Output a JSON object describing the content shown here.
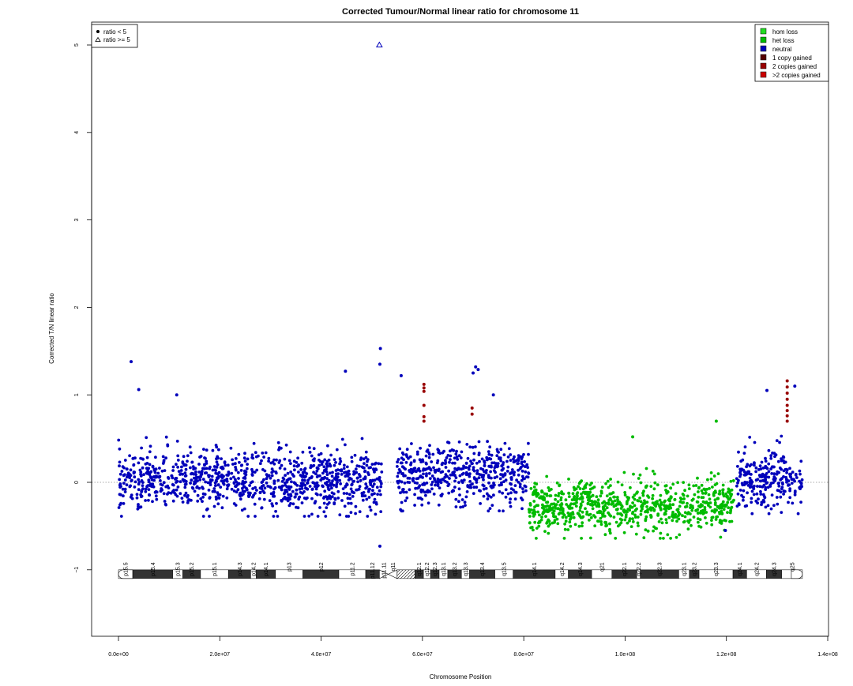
{
  "chart_data": {
    "type": "scatter",
    "title": "Corrected Tumour/Normal linear ratio for chromosome  11",
    "xlabel": "Chromosome Position",
    "ylabel": "Corrected T/N linear ratio",
    "xlim": [
      -5000000,
      140000000
    ],
    "ylim": [
      -1.8,
      5.2
    ],
    "x_ticks": [
      0,
      20000000,
      40000000,
      60000000,
      80000000,
      100000000,
      120000000,
      140000000
    ],
    "x_tick_labels": [
      "0.0e+00",
      "2.0e+07",
      "4.0e+07",
      "6.0e+07",
      "8.0e+07",
      "1.0e+08",
      "1.2e+08",
      "1.4e+08"
    ],
    "y_ticks": [
      -1,
      0,
      1,
      2,
      3,
      4,
      5
    ],
    "y_tick_labels": [
      "−1",
      "0",
      "1",
      "2",
      "3",
      "4",
      "5"
    ],
    "reference_line": 0,
    "colors": {
      "hom_loss": "#22dd22",
      "het_loss": "#00bb00",
      "neutral": "#0000bb",
      "one_copy_gained": "#550000",
      "two_copies_gained": "#990000",
      "gt_two_copies_gained": "#cc0000"
    },
    "legend_shape": [
      {
        "symbol": "●",
        "label": "ratio < 5"
      },
      {
        "symbol": "△",
        "label": "ratio >= 5"
      }
    ],
    "legend_state": [
      {
        "color": "#22dd22",
        "label": "hom loss"
      },
      {
        "color": "#00bb00",
        "label": "het loss"
      },
      {
        "color": "#0000bb",
        "label": "neutral"
      },
      {
        "color": "#550000",
        "label": "1 copy gained"
      },
      {
        "color": "#990000",
        "label": "2 copies gained"
      },
      {
        "color": "#cc0000",
        "label": ">2 copies gained"
      }
    ],
    "segments": [
      {
        "state": "neutral",
        "x_start": 0,
        "x_end": 52000000,
        "mean": 0.02,
        "sd": 0.17
      },
      {
        "state": "neutral",
        "x_start": 55000000,
        "x_end": 81000000,
        "mean": 0.08,
        "sd": 0.17
      },
      {
        "state": "het_loss",
        "x_start": 81000000,
        "x_end": 121500000,
        "mean": -0.28,
        "sd": 0.15
      },
      {
        "state": "neutral",
        "x_start": 122000000,
        "x_end": 135000000,
        "mean": 0.05,
        "sd": 0.17
      }
    ],
    "outliers": [
      {
        "x": 51500000,
        "y": 5.0,
        "state": "neutral",
        "shape": "triangle"
      },
      {
        "x": 51700000,
        "y": 1.53,
        "state": "neutral"
      },
      {
        "x": 51600000,
        "y": 1.35,
        "state": "neutral"
      },
      {
        "x": 2500000,
        "y": 1.38,
        "state": "neutral"
      },
      {
        "x": 44800000,
        "y": 1.27,
        "state": "neutral"
      },
      {
        "x": 55800000,
        "y": 1.22,
        "state": "neutral"
      },
      {
        "x": 70500000,
        "y": 1.32,
        "state": "neutral"
      },
      {
        "x": 71000000,
        "y": 1.29,
        "state": "neutral"
      },
      {
        "x": 70000000,
        "y": 1.25,
        "state": "neutral"
      },
      {
        "x": 4000000,
        "y": 1.06,
        "state": "neutral"
      },
      {
        "x": 11500000,
        "y": 1.0,
        "state": "neutral"
      },
      {
        "x": 74000000,
        "y": 1.0,
        "state": "neutral"
      },
      {
        "x": 128000000,
        "y": 1.05,
        "state": "neutral"
      },
      {
        "x": 133500000,
        "y": 1.1,
        "state": "neutral"
      },
      {
        "x": 101500000,
        "y": 0.52,
        "state": "het_loss"
      },
      {
        "x": 118000000,
        "y": 0.7,
        "state": "het_loss"
      },
      {
        "x": 51600000,
        "y": -0.73,
        "state": "neutral"
      },
      {
        "x": 119800000,
        "y": -0.55,
        "state": "neutral"
      },
      {
        "x": 60300000,
        "y": 1.12,
        "state": "two_copies_gained"
      },
      {
        "x": 60300000,
        "y": 1.08,
        "state": "two_copies_gained"
      },
      {
        "x": 60300000,
        "y": 1.04,
        "state": "two_copies_gained"
      },
      {
        "x": 60300000,
        "y": 0.88,
        "state": "two_copies_gained"
      },
      {
        "x": 60300000,
        "y": 0.75,
        "state": "two_copies_gained"
      },
      {
        "x": 60300000,
        "y": 0.7,
        "state": "two_copies_gained"
      },
      {
        "x": 69800000,
        "y": 0.85,
        "state": "two_copies_gained"
      },
      {
        "x": 69800000,
        "y": 0.78,
        "state": "two_copies_gained"
      },
      {
        "x": 132000000,
        "y": 1.16,
        "state": "two_copies_gained"
      },
      {
        "x": 132000000,
        "y": 1.09,
        "state": "two_copies_gained"
      },
      {
        "x": 132000000,
        "y": 1.02,
        "state": "two_copies_gained"
      },
      {
        "x": 132000000,
        "y": 0.95,
        "state": "two_copies_gained"
      },
      {
        "x": 132000000,
        "y": 0.88,
        "state": "two_copies_gained"
      },
      {
        "x": 132000000,
        "y": 0.82,
        "state": "two_copies_gained"
      },
      {
        "x": 132000000,
        "y": 0.76,
        "state": "two_copies_gained"
      },
      {
        "x": 132000000,
        "y": 0.7,
        "state": "two_copies_gained"
      }
    ],
    "ideogram": {
      "y": -1.05,
      "centromere_start": 51500000,
      "centromere_end": 55000000,
      "bands": [
        {
          "name": "p15.5",
          "start": 0,
          "end": 2800000,
          "stain": "gneg"
        },
        {
          "name": "p15.4",
          "start": 2800000,
          "end": 10700000,
          "stain": "gpos"
        },
        {
          "name": "p15.3",
          "start": 10700000,
          "end": 12700000,
          "stain": "gneg"
        },
        {
          "name": "p15.2",
          "start": 12700000,
          "end": 16200000,
          "stain": "gpos"
        },
        {
          "name": "p15.1",
          "start": 16200000,
          "end": 21700000,
          "stain": "gneg"
        },
        {
          "name": "p14.3",
          "start": 21700000,
          "end": 26100000,
          "stain": "gpos"
        },
        {
          "name": "p14.2",
          "start": 26100000,
          "end": 27200000,
          "stain": "gneg"
        },
        {
          "name": "p14.1",
          "start": 27200000,
          "end": 31000000,
          "stain": "gpos"
        },
        {
          "name": "p13",
          "start": 31000000,
          "end": 36400000,
          "stain": "gneg"
        },
        {
          "name": "p12",
          "start": 36400000,
          "end": 43500000,
          "stain": "gpos"
        },
        {
          "name": "p11.2",
          "start": 43500000,
          "end": 48800000,
          "stain": "gneg"
        },
        {
          "name": "p11.12",
          "start": 48800000,
          "end": 51500000,
          "stain": "gpos"
        },
        {
          "name": "p11.11",
          "start": 51500000,
          "end": 53300000,
          "stain": "acen"
        },
        {
          "name": "q11",
          "start": 53300000,
          "end": 55000000,
          "stain": "acen"
        },
        {
          "name": "",
          "start": 55000000,
          "end": 58500000,
          "stain": "gvar"
        },
        {
          "name": "q12.1",
          "start": 58500000,
          "end": 60200000,
          "stain": "gpos"
        },
        {
          "name": "q12.2",
          "start": 60200000,
          "end": 61600000,
          "stain": "gneg"
        },
        {
          "name": "q12.3",
          "start": 61600000,
          "end": 63300000,
          "stain": "gpos"
        },
        {
          "name": "q13.1",
          "start": 63300000,
          "end": 65000000,
          "stain": "gneg"
        },
        {
          "name": "q13.2",
          "start": 65000000,
          "end": 67700000,
          "stain": "gpos"
        },
        {
          "name": "q13.3",
          "start": 67700000,
          "end": 69300000,
          "stain": "gneg"
        },
        {
          "name": "q13.4",
          "start": 69300000,
          "end": 74300000,
          "stain": "gpos"
        },
        {
          "name": "q13.5",
          "start": 74300000,
          "end": 77900000,
          "stain": "gneg"
        },
        {
          "name": "q14.1",
          "start": 77900000,
          "end": 86200000,
          "stain": "gpos"
        },
        {
          "name": "q14.2",
          "start": 86200000,
          "end": 88800000,
          "stain": "gneg"
        },
        {
          "name": "q14.3",
          "start": 88800000,
          "end": 93400000,
          "stain": "gpos"
        },
        {
          "name": "q21",
          "start": 93400000,
          "end": 97400000,
          "stain": "gneg"
        },
        {
          "name": "q22.1",
          "start": 97400000,
          "end": 102300000,
          "stain": "gpos"
        },
        {
          "name": "q22.2",
          "start": 102300000,
          "end": 103000000,
          "stain": "gneg"
        },
        {
          "name": "q22.3",
          "start": 103000000,
          "end": 110600000,
          "stain": "gpos"
        },
        {
          "name": "q23.1",
          "start": 110600000,
          "end": 112700000,
          "stain": "gneg"
        },
        {
          "name": "q23.2",
          "start": 112700000,
          "end": 114600000,
          "stain": "gpos"
        },
        {
          "name": "q23.3",
          "start": 114600000,
          "end": 121300000,
          "stain": "gneg"
        },
        {
          "name": "q24.1",
          "start": 121300000,
          "end": 124000000,
          "stain": "gpos"
        },
        {
          "name": "q24.2",
          "start": 124000000,
          "end": 127900000,
          "stain": "gneg"
        },
        {
          "name": "q24.3",
          "start": 127900000,
          "end": 130900000,
          "stain": "gpos"
        },
        {
          "name": "q25",
          "start": 130900000,
          "end": 135000000,
          "stain": "gneg"
        }
      ]
    }
  }
}
